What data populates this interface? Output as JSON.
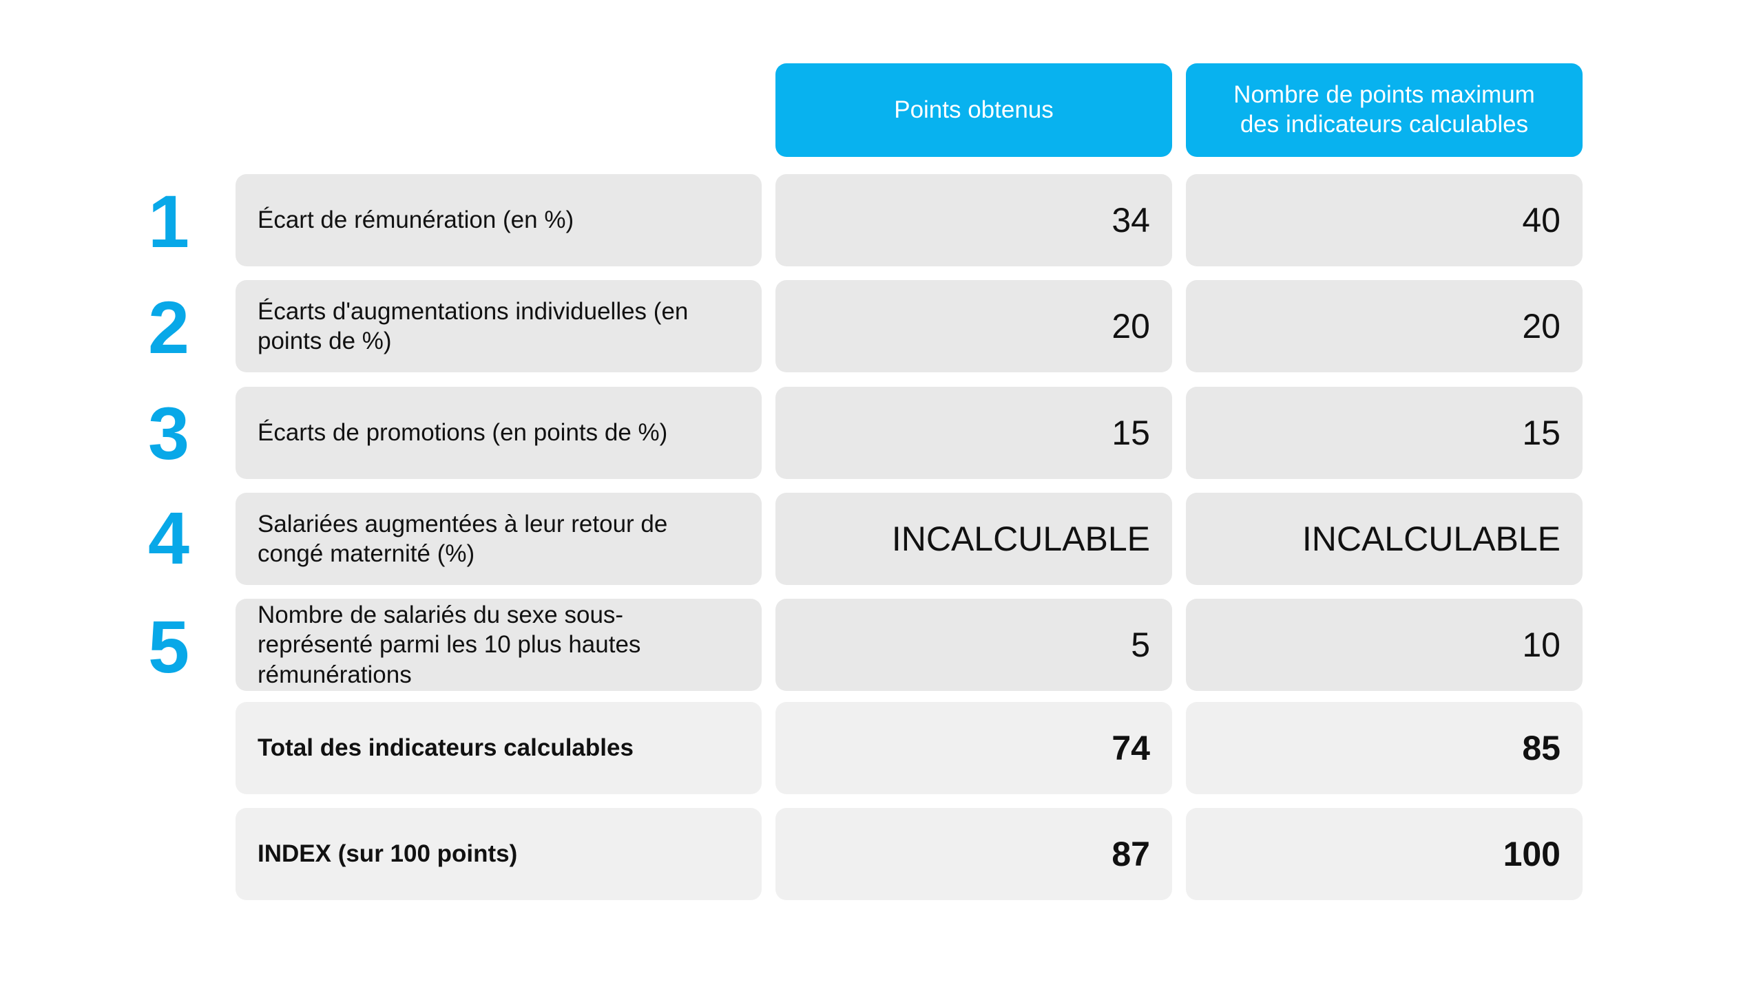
{
  "headers": {
    "points": "Points obtenus",
    "max": "Nombre de points maximum\ndes indicateurs calculables"
  },
  "rows": [
    {
      "number": "1",
      "label": "Écart de rémunération (en %)",
      "points": "34",
      "max": "40"
    },
    {
      "number": "2",
      "label": "Écarts d'augmentations individuelles (en points de %)",
      "points": "20",
      "max": "20"
    },
    {
      "number": "3",
      "label": "Écarts de promotions (en points de %)",
      "points": "15",
      "max": "15"
    },
    {
      "number": "4",
      "label": "Salariées augmentées à leur retour de congé maternité (%)",
      "points": "INCALCULABLE",
      "max": "INCALCULABLE"
    },
    {
      "number": "5",
      "label": "Nombre de salariés du sexe sous-représenté parmi les 10 plus hautes rémunérations",
      "points": "5",
      "max": "10"
    }
  ],
  "totals": [
    {
      "label": "Total des indicateurs calculables",
      "points": "74",
      "max": "85"
    },
    {
      "label": "INDEX (sur 100 points)",
      "points": "87",
      "max": "100"
    }
  ],
  "colors": {
    "accent": "#08b2ef",
    "cell_background": "#e8e8e8",
    "total_background": "#f0f0f0"
  }
}
